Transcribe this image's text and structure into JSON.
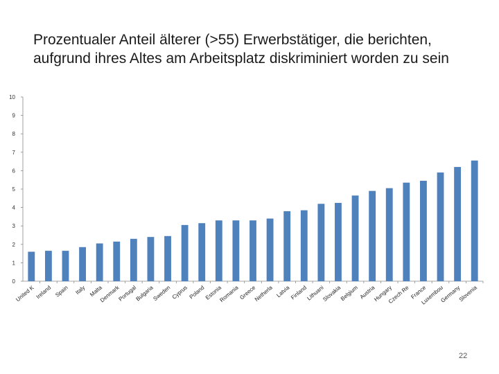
{
  "slide": {
    "title": "Prozentualer Anteil älterer (>55) Erwerbstätiger, die berichten, aufgrund ihres Altes am Arbeitsplatz diskriminiert worden zu sein",
    "page_number": "22"
  },
  "chart_data": {
    "type": "bar",
    "title": "Prozentualer Anteil älterer (>55) Erwerbstätiger, die berichten, aufgrund ihres Altes am Arbeitsplatz diskriminiert worden zu sein",
    "xlabel": "",
    "ylabel": "",
    "ylim": [
      0,
      10
    ],
    "yticks": [
      0,
      1,
      2,
      3,
      4,
      5,
      6,
      7,
      8,
      9,
      10
    ],
    "grid": false,
    "legend": "none",
    "bar_color": "#4f81bd",
    "categories": [
      "United K",
      "Ireland",
      "Spain",
      "Italy",
      "Malta",
      "Denmark",
      "Portugal",
      "Bulgaria",
      "Sweden",
      "Cyprus",
      "Poland",
      "Estonia",
      "Romania",
      "Greece",
      "Netherla",
      "Latvia",
      "Finland",
      "Lithuani",
      "Slovakia",
      "Belgium",
      "Austria",
      "Hungary",
      "Czech Re",
      "France",
      "Luxembou",
      "Germany",
      "Slovenia"
    ],
    "values": [
      1.6,
      1.65,
      1.65,
      1.85,
      2.05,
      2.15,
      2.3,
      2.4,
      2.45,
      3.05,
      3.15,
      3.3,
      3.3,
      3.3,
      3.4,
      3.8,
      3.85,
      4.2,
      4.25,
      4.65,
      4.9,
      5.05,
      5.35,
      5.45,
      5.9,
      6.2,
      6.55
    ]
  }
}
